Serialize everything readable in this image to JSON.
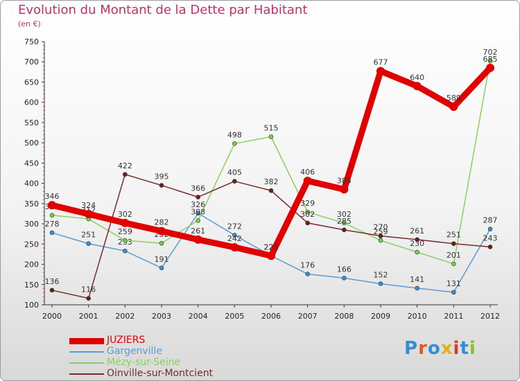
{
  "chart_data": {
    "type": "line",
    "title": "Evolution du Montant de la Dette par Habitant",
    "subtitle": "(en €)",
    "x": [
      "2000",
      "2001",
      "2002",
      "2003",
      "2004",
      "2005",
      "2006",
      "2007",
      "2008",
      "2009",
      "2010",
      "2011",
      "2012"
    ],
    "ylim": [
      100,
      750
    ],
    "yticks": [
      100,
      150,
      200,
      250,
      300,
      350,
      400,
      450,
      500,
      550,
      600,
      650,
      700,
      750
    ],
    "grid": false,
    "legend_position": "bottom-left",
    "series": [
      {
        "name": "JUZIERS",
        "color": "#e00000",
        "width": 9,
        "values": [
          346,
          324,
          302,
          282,
          261,
          242,
          221,
          406,
          385,
          677,
          640,
          589,
          685
        ]
      },
      {
        "name": "Gargenville",
        "color": "#5a9bd0",
        "width": 1.5,
        "marker": "#3a8fd0",
        "values": [
          278,
          251,
          233,
          191,
          326,
          272,
          221,
          176,
          166,
          152,
          141,
          131,
          287
        ]
      },
      {
        "name": "Mézy-sur-Seine",
        "color": "#8ad060",
        "width": 1.5,
        "marker": "#77d040",
        "values": [
          321,
          312,
          259,
          252,
          308,
          498,
          515,
          329,
          302,
          259,
          230,
          201,
          702
        ]
      },
      {
        "name": "Oinville-sur-Montcient",
        "color": "#7a2a2a",
        "width": 1.5,
        "marker": "#6a1e1e",
        "values": [
          136,
          116,
          422,
          395,
          366,
          405,
          382,
          302,
          285,
          270,
          261,
          251,
          243
        ]
      }
    ]
  },
  "logo": {
    "text": "Proxiti",
    "colors": [
      "#2e8fd6",
      "#e05a1a",
      "#2e8fd6",
      "#e0b21a",
      "#d63a2a",
      "#2e8fd6",
      "#8ac020"
    ]
  }
}
